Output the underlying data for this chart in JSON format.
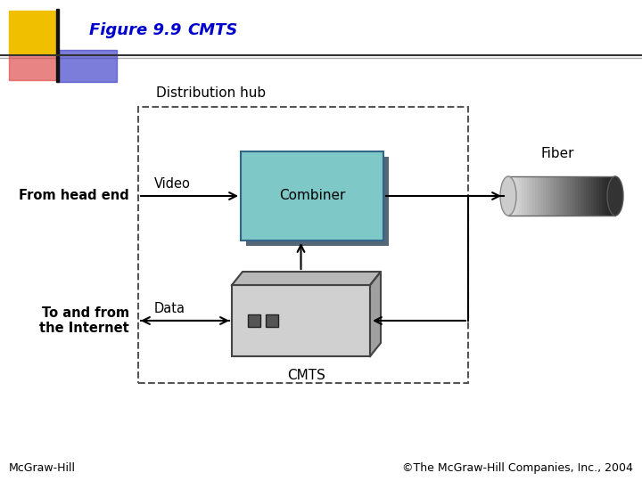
{
  "title_figure": "Figure 9.9",
  "title_cmts": "CMTS",
  "bg_color": "#ffffff",
  "title_color": "#0000cc",
  "dist_hub_label": "Distribution hub",
  "combiner_label": "Combiner",
  "combiner_color": "#7ec8c8",
  "combiner_border": "#336688",
  "cmts_label": "CMTS",
  "cmts_color": "#d0d0d0",
  "cmts_border": "#444444",
  "video_label": "Video",
  "data_label": "Data",
  "fiber_label": "Fiber",
  "from_head_end_label": "From head end",
  "to_internet_label": "To and from\nthe Internet",
  "footer_left": "McGraw-Hill",
  "footer_right": "©The McGraw-Hill Companies, Inc., 2004"
}
